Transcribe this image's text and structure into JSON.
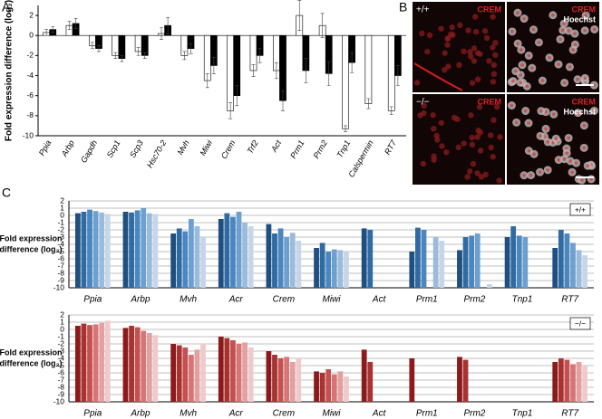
{
  "panel_labels": [
    "A",
    "B",
    "C"
  ],
  "micrographs": [
    {
      "genotype": "+/+",
      "stain": "CREM"
    },
    {
      "stain": "CREM",
      "counterstain": "Hoechst"
    },
    {
      "genotype": "−/−",
      "stain": "CREM"
    },
    {
      "stain": "CREM",
      "counterstain": "Hoechst"
    }
  ],
  "chart_data": [
    {
      "type": "bar",
      "ylabel": "Fold expression difference (log₂)",
      "categories": [
        "Ppia",
        "Arbp",
        "Gapdh",
        "Scp1",
        "Scp3",
        "Hsc70-2",
        "Mvh",
        "Miwi",
        "Crem",
        "Trf2",
        "Act",
        "Prm1",
        "Prm2",
        "Tnp1",
        "Calspermin",
        "RT7"
      ],
      "series": [
        {
          "color": "#ffffff",
          "values": [
            0.3,
            1.0,
            -1.0,
            -2.0,
            -1.6,
            0.2,
            -2.0,
            -4.5,
            -7.5,
            -3.5,
            -3.5,
            2.0,
            1.0,
            -9.3,
            -6.8,
            -7.5
          ],
          "errors": [
            0.3,
            0.4,
            0.3,
            0.3,
            0.4,
            0.6,
            0.4,
            0.7,
            0.8,
            0.6,
            0.8,
            1.5,
            1.2,
            0.3,
            0.5,
            0.4
          ]
        },
        {
          "color": "#000000",
          "values": [
            0.6,
            1.2,
            -1.3,
            -2.3,
            -2.0,
            1.0,
            -1.3,
            -3.0,
            -6.0,
            -2.0,
            -6.5,
            -3.5,
            -3.8,
            -2.7,
            null,
            -4.0
          ],
          "errors": [
            0.3,
            0.5,
            0.3,
            0.3,
            0.3,
            0.8,
            0.5,
            0.8,
            1.0,
            0.7,
            1.0,
            1.2,
            1.2,
            1.0,
            null,
            1.0
          ]
        }
      ],
      "ylim": [
        -10,
        3
      ],
      "yticks": [
        2,
        0,
        -2,
        -4,
        -6,
        -8,
        -10
      ]
    },
    {
      "type": "column",
      "label": "+/+",
      "ylabel": [
        "Fold expression",
        "difference (log₂)"
      ],
      "categories": [
        "Ppia",
        "Arbp",
        "Mvh",
        "Acr",
        "Crem",
        "Miwi",
        "Act",
        "Prm1",
        "Prm2",
        "Tnp1",
        "RT7"
      ],
      "colors": [
        "#1f4e80",
        "#2f6aa3",
        "#4a86c0",
        "#6d9fcf",
        "#9bbbdc",
        "#c6d6e8"
      ],
      "values": [
        [
          0.3,
          0.5,
          0.8,
          0.6,
          0.4,
          0.2
        ],
        [
          0.5,
          0.4,
          0.7,
          1.0,
          0.3,
          0.2
        ],
        [
          -2.5,
          -1.8,
          -2.2,
          -0.5,
          -1.5,
          -3.0
        ],
        [
          -0.5,
          0.3,
          -0.2,
          0.5,
          -1.0,
          -1.5
        ],
        [
          -1.2,
          -2.5,
          -1.8,
          -3.0,
          -2.4,
          -3.5
        ],
        [
          -4.5,
          -3.8,
          -5.0,
          -4.7,
          -4.8,
          -5.0
        ],
        [
          -1.8,
          -2.0,
          null,
          null,
          null,
          null
        ],
        [
          -5.0,
          -1.7,
          -2.0,
          null,
          -3.0,
          -3.5
        ],
        [
          -4.8,
          -3.0,
          -2.8,
          -2.5,
          null,
          -9.5
        ],
        [
          -3.0,
          -1.5,
          -2.8,
          -3.0,
          null,
          null
        ],
        [
          -4.5,
          -2.0,
          -2.5,
          -3.8,
          -4.8,
          -5.5
        ]
      ],
      "ylim": [
        -10,
        2
      ],
      "yticks": [
        2,
        1,
        0,
        -1,
        -2,
        -3,
        -4,
        -5,
        -6,
        -7,
        -8,
        -9,
        -10
      ],
      "grid": true
    },
    {
      "type": "column",
      "label": "−/−",
      "ylabel": [
        "Fold expression",
        "difference (log₂)"
      ],
      "categories": [
        "Ppia",
        "Arbp",
        "Mvh",
        "Acr",
        "Crem",
        "Miwi",
        "Act",
        "Prm1",
        "Prm2",
        "Tnp1",
        "RT7"
      ],
      "colors": [
        "#8b1a1a",
        "#a83232",
        "#c45050",
        "#d67575",
        "#e3a0a0",
        "#efcaca"
      ],
      "values": [
        [
          0.5,
          0.8,
          0.6,
          0.7,
          0.9,
          1.2
        ],
        [
          0.2,
          0.5,
          0.3,
          -0.2,
          -0.5,
          -0.8
        ],
        [
          -2.0,
          -2.2,
          -2.5,
          -3.5,
          -2.8,
          -2.0
        ],
        [
          -1.0,
          -1.2,
          -1.5,
          -2.0,
          -1.8,
          -2.5
        ],
        [
          -3.0,
          -3.5,
          -4.0,
          -3.8,
          -4.5,
          -4.0
        ],
        [
          -5.8,
          -6.0,
          -5.5,
          -6.2,
          -5.8,
          -6.5
        ],
        [
          -2.8,
          -4.5,
          null,
          null,
          null,
          null
        ],
        [
          -4.0,
          null,
          null,
          null,
          null,
          null
        ],
        [
          -3.8,
          -4.2,
          null,
          null,
          null,
          null
        ],
        [
          null,
          null,
          null,
          null,
          null,
          null
        ],
        [
          -4.5,
          -4.0,
          -4.2,
          -4.8,
          -4.5,
          -5.0
        ]
      ],
      "ylim": [
        -10,
        2
      ],
      "yticks": [
        2,
        1,
        0,
        -1,
        -2,
        -3,
        -4,
        -5,
        -6,
        -7,
        -8,
        -9,
        -10
      ],
      "grid": true
    }
  ]
}
